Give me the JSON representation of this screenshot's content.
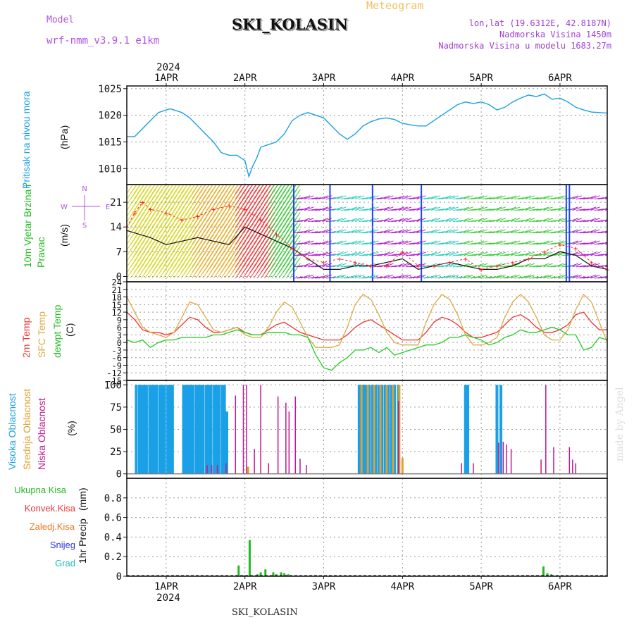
{
  "header": {
    "model_label": "Model",
    "model_name": "wrf-nmm_v3.9.1 e1km",
    "title": "SKI_KOLASIN",
    "meteogram_label": "Meteogram",
    "lonlat": "lon,lat (19.6312E, 42.8187N)",
    "altitude": "Nadmorska Visina 1450m",
    "altitude_model": "Nadmorska Visina u modelu 1683.27m",
    "footer": "SKI_KOLASIN",
    "watermark": "made by Angel",
    "colors": {
      "model": "#b050e0",
      "meteogram": "#f0c060",
      "info": "#a040d0"
    }
  },
  "chart_data": [
    {
      "type": "line",
      "panel": "pressure",
      "title": "",
      "ylabel": "Pritisak na nivou mora",
      "unit": "(hPa)",
      "year": "2024",
      "x_labels": [
        "1APR",
        "2APR",
        "3APR",
        "4APR",
        "5APR",
        "6APR"
      ],
      "xlim": [
        -0.5,
        5.6
      ],
      "ylim": [
        1007,
        1025.5
      ],
      "yticks": [
        1010,
        1015,
        1020,
        1025
      ],
      "grid": true,
      "colors": {
        "line": "#1aa0e6"
      },
      "series": [
        {
          "x": [
            -0.5,
            -0.4,
            -0.3,
            -0.2,
            -0.1,
            0.0,
            0.05,
            0.1,
            0.2,
            0.3,
            0.4,
            0.5,
            0.6,
            0.7,
            0.8,
            0.9,
            1.0,
            1.05,
            1.1,
            1.15,
            1.2,
            1.3,
            1.4,
            1.5,
            1.6,
            1.7,
            1.8,
            1.9,
            2.0,
            2.1,
            2.2,
            2.3,
            2.4,
            2.5,
            2.6,
            2.7,
            2.8,
            2.9,
            3.0,
            3.1,
            3.2,
            3.3,
            3.4,
            3.5,
            3.6,
            3.7,
            3.8,
            3.9,
            4.0,
            4.1,
            4.2,
            4.3,
            4.4,
            4.5,
            4.6,
            4.7,
            4.8,
            4.9,
            5.0,
            5.1,
            5.2,
            5.3,
            5.4,
            5.5,
            5.6
          ],
          "y": [
            1016,
            1016,
            1017.5,
            1019,
            1020.5,
            1021,
            1021.2,
            1021,
            1020.5,
            1019.5,
            1018,
            1016.5,
            1015,
            1013,
            1012.5,
            1012.5,
            1011.5,
            1008.5,
            1010.5,
            1012,
            1014,
            1014.5,
            1015,
            1016.5,
            1019,
            1020,
            1020.5,
            1020,
            1019.5,
            1018,
            1016.5,
            1015.5,
            1016.5,
            1018,
            1018.8,
            1019.3,
            1019.5,
            1019.2,
            1018.5,
            1018.2,
            1018,
            1018,
            1019,
            1020,
            1021,
            1022,
            1022.5,
            1022.2,
            1022.5,
            1022,
            1021,
            1021.5,
            1022.5,
            1023.2,
            1023.8,
            1023.5,
            1024,
            1023,
            1023.2,
            1022.5,
            1021.5,
            1021,
            1020.6,
            1020.5,
            1020.4
          ]
        }
      ]
    },
    {
      "type": "line",
      "panel": "wind",
      "title": "",
      "ylabel": "10m Vjetar Brzina i Pravac",
      "unit": "(m/s)",
      "ylim": [
        -1.5,
        26
      ],
      "yticks": [
        0,
        7,
        14,
        21
      ],
      "grid": true,
      "compass": {
        "n": "N",
        "e": "E",
        "w": "W",
        "s": "S"
      },
      "colors": {
        "speed": "#111111",
        "gust": "#ff2020"
      },
      "series": [
        {
          "name": "speed",
          "x": [
            -0.5,
            -0.35,
            -0.2,
            0.0,
            0.2,
            0.4,
            0.6,
            0.8,
            1.0,
            1.2,
            1.4,
            1.6,
            1.8,
            2.0,
            2.2,
            2.4,
            2.6,
            2.8,
            3.0,
            3.2,
            3.4,
            3.6,
            3.8,
            4.0,
            4.2,
            4.4,
            4.6,
            4.8,
            5.0,
            5.2,
            5.4,
            5.6
          ],
          "y": [
            13,
            12,
            11,
            9,
            10,
            11,
            10,
            9,
            14,
            12,
            10,
            8,
            5,
            2,
            2,
            3,
            3,
            4,
            5,
            2,
            3,
            4,
            3,
            2,
            2,
            3,
            5,
            5,
            7,
            6,
            3,
            2
          ]
        },
        {
          "name": "gust",
          "x": [
            -0.5,
            -0.4,
            -0.3,
            -0.2,
            0.0,
            0.2,
            0.4,
            0.6,
            0.8,
            1.0,
            1.2,
            1.4,
            1.6,
            1.8,
            2.0,
            2.2,
            2.4,
            2.6,
            2.8,
            3.0,
            3.2,
            3.4,
            3.6,
            3.8,
            4.0,
            4.2,
            4.4,
            4.6,
            4.8,
            5.0,
            5.2,
            5.4,
            5.6
          ],
          "y": [
            14,
            18,
            21,
            19,
            18,
            16,
            17,
            19,
            20,
            19,
            16,
            12,
            8,
            5,
            4,
            5,
            4,
            3,
            3,
            7,
            3,
            3,
            4,
            5,
            2,
            3,
            4,
            5,
            7,
            9,
            8,
            4,
            2
          ]
        }
      ]
    },
    {
      "type": "line",
      "panel": "temperature",
      "title": "",
      "ylabel": "2m Temp | SFC Temp | dewpt Temp",
      "unit": "(C)",
      "ylim": [
        -15,
        24
      ],
      "yticks": [
        -15,
        -12,
        -9,
        -6,
        -3,
        0,
        3,
        6,
        9,
        12,
        15,
        18,
        21,
        24
      ],
      "grid": true,
      "series": [
        {
          "name": "2m Temp",
          "color": "#ee3333",
          "x": [
            -0.5,
            -0.4,
            -0.3,
            -0.2,
            -0.1,
            0.0,
            0.1,
            0.2,
            0.3,
            0.4,
            0.5,
            0.6,
            0.7,
            0.8,
            0.9,
            1.0,
            1.1,
            1.2,
            1.3,
            1.4,
            1.5,
            1.6,
            1.7,
            1.8,
            1.9,
            2.0,
            2.1,
            2.2,
            2.3,
            2.4,
            2.5,
            2.6,
            2.7,
            2.8,
            2.9,
            3.0,
            3.1,
            3.2,
            3.3,
            3.4,
            3.5,
            3.6,
            3.7,
            3.8,
            3.9,
            4.0,
            4.1,
            4.2,
            4.3,
            4.4,
            4.5,
            4.6,
            4.7,
            4.8,
            4.9,
            5.0,
            5.1,
            5.2,
            5.3,
            5.4,
            5.5,
            5.6
          ],
          "y": [
            12,
            9,
            5,
            4,
            4,
            3,
            4,
            7,
            10,
            9,
            6,
            4,
            4,
            5,
            6,
            4,
            3,
            3,
            5,
            7,
            8,
            6,
            4,
            3,
            2,
            1,
            1,
            1,
            3,
            6,
            8,
            9,
            7,
            5,
            3,
            1,
            1,
            1,
            4,
            8,
            10,
            9,
            7,
            4,
            2,
            2,
            3,
            4,
            7,
            10,
            11,
            9,
            6,
            4,
            4,
            5,
            7,
            11,
            12,
            8,
            5,
            5
          ]
        },
        {
          "name": "SFC Temp",
          "color": "#ddaa44",
          "x": [
            -0.5,
            -0.4,
            -0.3,
            -0.2,
            -0.1,
            0.0,
            0.1,
            0.2,
            0.3,
            0.4,
            0.5,
            0.6,
            0.7,
            0.8,
            0.9,
            1.0,
            1.1,
            1.2,
            1.3,
            1.4,
            1.5,
            1.6,
            1.7,
            1.8,
            1.9,
            2.0,
            2.1,
            2.2,
            2.3,
            2.4,
            2.5,
            2.6,
            2.7,
            2.8,
            2.9,
            3.0,
            3.1,
            3.2,
            3.3,
            3.4,
            3.5,
            3.6,
            3.7,
            3.8,
            3.9,
            4.0,
            4.1,
            4.2,
            4.3,
            4.4,
            4.5,
            4.6,
            4.7,
            4.8,
            4.9,
            5.0,
            5.1,
            5.2,
            5.3,
            5.4,
            5.5,
            5.6
          ],
          "y": [
            18,
            12,
            6,
            4,
            3,
            2,
            4,
            10,
            16,
            15,
            10,
            5,
            4,
            5,
            6,
            3,
            2,
            2,
            6,
            12,
            16,
            14,
            8,
            2,
            -2,
            -2,
            -2,
            -1,
            6,
            15,
            19,
            17,
            11,
            4,
            0,
            -1,
            -1,
            -1,
            8,
            15,
            19,
            17,
            11,
            3,
            -1,
            -1,
            0,
            2,
            10,
            16,
            19,
            16,
            10,
            3,
            1,
            1,
            5,
            13,
            19,
            16,
            8,
            0
          ]
        },
        {
          "name": "dewpt Temp",
          "color": "#22cc22",
          "x": [
            -0.5,
            -0.4,
            -0.3,
            -0.2,
            -0.1,
            0.0,
            0.1,
            0.2,
            0.3,
            0.4,
            0.5,
            0.6,
            0.7,
            0.8,
            0.9,
            1.0,
            1.1,
            1.2,
            1.3,
            1.4,
            1.5,
            1.6,
            1.7,
            1.8,
            1.9,
            2.0,
            2.1,
            2.2,
            2.3,
            2.4,
            2.5,
            2.6,
            2.7,
            2.8,
            2.9,
            3.0,
            3.1,
            3.2,
            3.3,
            3.4,
            3.5,
            3.6,
            3.7,
            3.8,
            3.9,
            4.0,
            4.1,
            4.2,
            4.3,
            4.4,
            4.5,
            4.6,
            4.7,
            4.8,
            4.9,
            5.0,
            5.1,
            5.2,
            5.3,
            5.4,
            5.5,
            5.6
          ],
          "y": [
            1,
            0,
            1,
            -2,
            0,
            1,
            1,
            2,
            2,
            2,
            2,
            3,
            3,
            4,
            5,
            4,
            3,
            3,
            4,
            4,
            4,
            3,
            3,
            2,
            -5,
            -10,
            -11,
            -8,
            -6,
            -3,
            -3,
            -2,
            -4,
            -2,
            -5,
            -4,
            -3,
            -2,
            -1,
            -1,
            0,
            2,
            2,
            3,
            2,
            1,
            -1,
            0,
            2,
            3,
            5,
            4,
            4,
            5,
            6,
            5,
            3,
            3,
            -3,
            -2,
            2,
            1
          ]
        }
      ]
    },
    {
      "type": "bar",
      "panel": "cloud",
      "title": "",
      "ylabel": "Visoka Oblacnost | Srednja Oblacnost | Niska Oblacnost",
      "unit": "(%)",
      "ylim": [
        -5,
        105
      ],
      "yticks": [
        0,
        25,
        50,
        75,
        100
      ],
      "grid": true,
      "series": [
        {
          "name": "Visoka Oblacnost",
          "color": "#1aa0e6",
          "x": [
            -0.38,
            -0.34,
            -0.31,
            -0.28,
            -0.25,
            -0.21,
            -0.18,
            -0.15,
            -0.12,
            -0.08,
            -0.05,
            -0.02,
            0.02,
            0.05,
            0.08,
            0.22,
            0.25,
            0.28,
            0.31,
            0.34,
            0.38,
            0.41,
            0.44,
            0.47,
            0.51,
            0.54,
            0.57,
            0.61,
            0.64,
            0.67,
            0.71,
            0.74,
            0.77,
            2.45,
            2.48,
            2.51,
            2.54,
            2.58,
            2.62,
            2.66,
            2.7,
            2.74,
            2.78,
            2.82,
            2.86,
            2.9,
            2.95,
            3.8,
            3.83,
            4.2,
            4.25
          ],
          "y": [
            100,
            100,
            100,
            100,
            100,
            100,
            100,
            100,
            100,
            100,
            100,
            100,
            100,
            100,
            100,
            100,
            100,
            100,
            100,
            100,
            100,
            100,
            100,
            100,
            100,
            100,
            100,
            100,
            100,
            100,
            100,
            100,
            70,
            100,
            100,
            100,
            100,
            100,
            100,
            100,
            100,
            100,
            100,
            100,
            100,
            100,
            100,
            100,
            100,
            100,
            100
          ]
        },
        {
          "name": "Srednja Oblacnost",
          "color": "#e0a030",
          "x": [
            1.04,
            2.48,
            2.56,
            2.64,
            2.72,
            2.8,
            2.88,
            2.96,
            3.0
          ],
          "y": [
            8,
            100,
            100,
            100,
            100,
            100,
            100,
            100,
            18
          ]
        },
        {
          "name": "Niska Oblacnost",
          "color": "#c01890",
          "x": [
            0.52,
            0.58,
            0.65,
            0.76,
            0.88,
            0.98,
            1.02,
            1.12,
            1.2,
            1.3,
            1.42,
            1.52,
            1.56,
            1.64,
            1.7,
            1.78,
            2.95,
            3.75,
            3.9,
            4.22,
            4.28,
            4.32,
            4.38,
            4.76,
            4.82,
            4.92,
            5.12,
            5.16,
            5.2
          ],
          "y": [
            10,
            10,
            10,
            12,
            88,
            100,
            100,
            28,
            100,
            12,
            87,
            80,
            70,
            87,
            17,
            10,
            82,
            12,
            12,
            35,
            36,
            33,
            28,
            16,
            100,
            30,
            30,
            16,
            12
          ]
        }
      ]
    },
    {
      "type": "bar",
      "panel": "precipitation",
      "title": "",
      "ylabel": "1hr Precip",
      "unit": "(mm)",
      "ylim": [
        0,
        1.0
      ],
      "yticks": [
        0,
        0.2,
        0.4,
        0.6,
        0.8
      ],
      "grid": true,
      "x_labels": [
        "1APR",
        "2APR",
        "3APR",
        "4APR",
        "5APR",
        "6APR"
      ],
      "year": "2024",
      "legend": [
        "Ukupna Kisa",
        "Konvek.Kisa",
        "Zaledj.Kisa",
        "Snijeg",
        "Grad"
      ],
      "legend_colors": [
        "#22bb22",
        "#ee3333",
        "#ee7722",
        "#3333dd",
        "#22bbbb"
      ],
      "series": [
        {
          "name": "Ukupna Kisa",
          "color": "#22bb22",
          "x": [
            0.92,
            0.99,
            1.06,
            1.16,
            1.2,
            1.26,
            1.36,
            1.4,
            1.46,
            1.5,
            1.55,
            4.79,
            4.84,
            4.89
          ],
          "y": [
            0.11,
            0.01,
            0.37,
            0.02,
            0.04,
            0.07,
            0.04,
            0.02,
            0.04,
            0.03,
            0.02,
            0.1,
            0.03,
            0.02
          ]
        }
      ]
    }
  ]
}
